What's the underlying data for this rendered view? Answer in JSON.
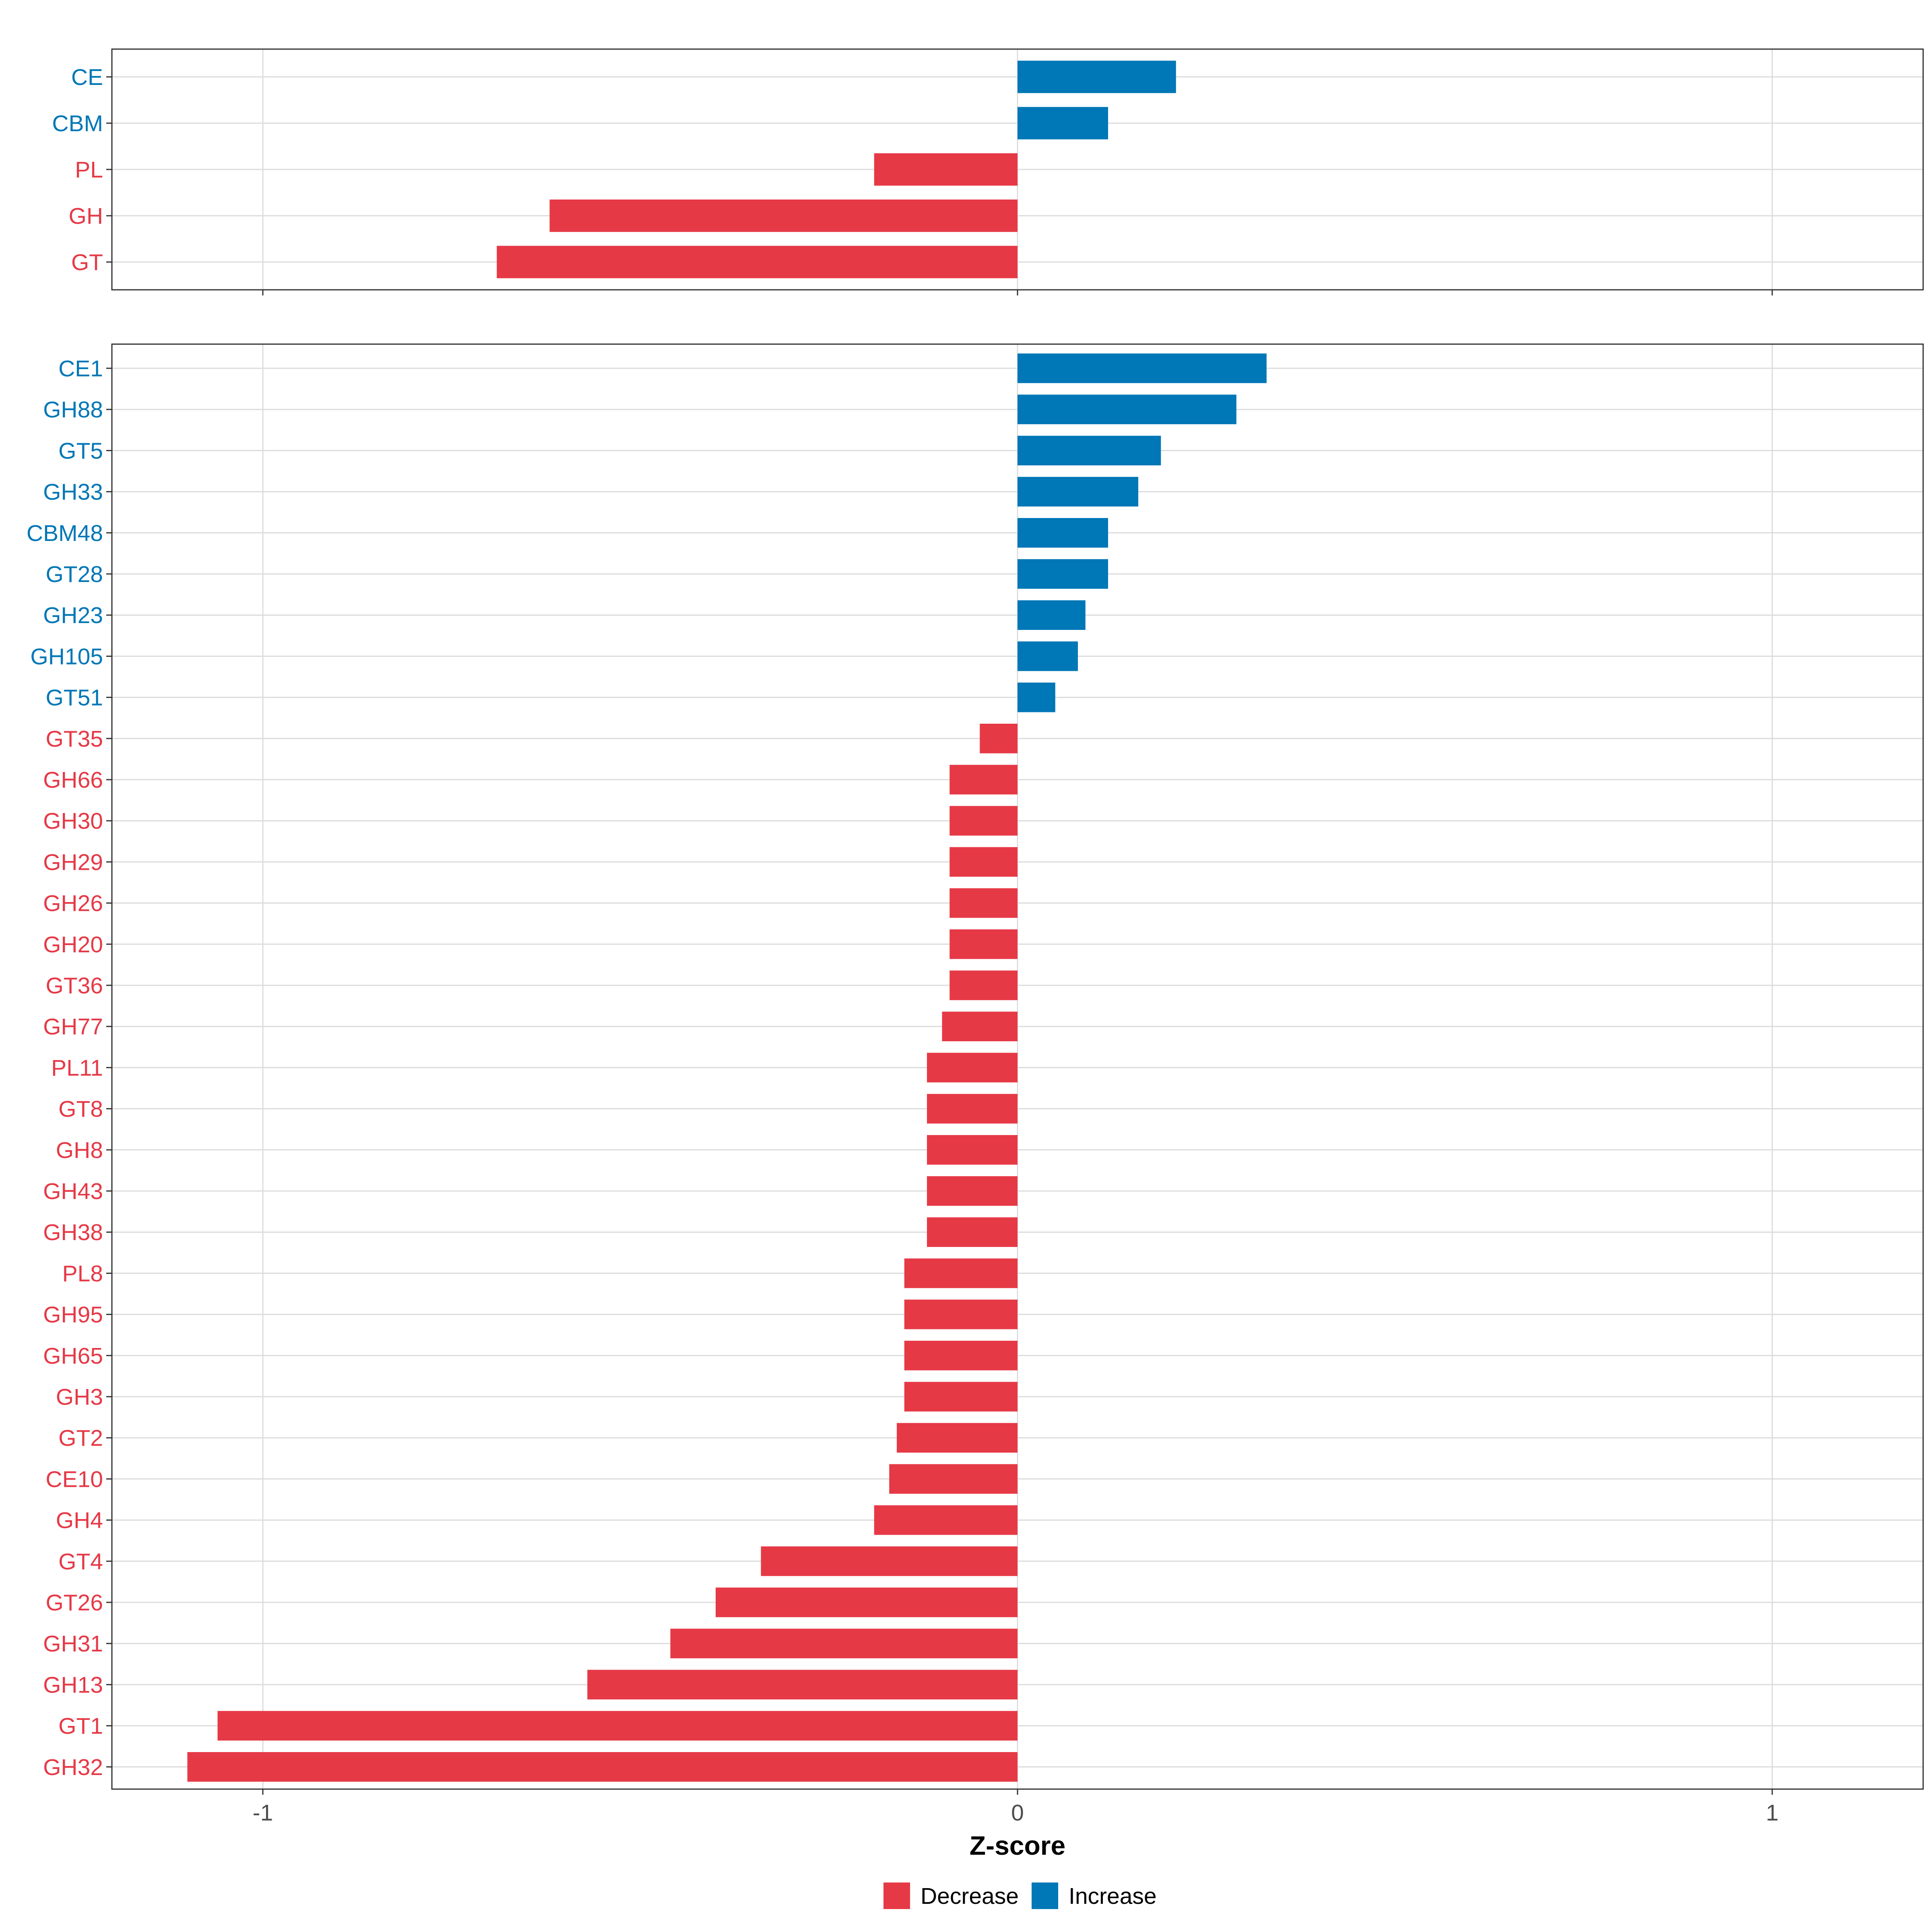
{
  "chart_data": [
    {
      "type": "bar",
      "orientation": "horizontal",
      "panel": "top",
      "categories": [
        "CE",
        "CBM",
        "PL",
        "GH",
        "GT"
      ],
      "values": [
        0.21,
        0.12,
        -0.19,
        -0.62,
        -0.69
      ],
      "direction": [
        "Increase",
        "Increase",
        "Decrease",
        "Decrease",
        "Decrease"
      ],
      "xlim": [
        -1.2,
        1.2
      ],
      "grid": true
    },
    {
      "type": "bar",
      "orientation": "horizontal",
      "panel": "bottom",
      "categories": [
        "CE1",
        "GH88",
        "GT5",
        "GH33",
        "CBM48",
        "GT28",
        "GH23",
        "GH105",
        "GT51",
        "GT35",
        "GH66",
        "GH30",
        "GH29",
        "GH26",
        "GH20",
        "GT36",
        "GH77",
        "PL11",
        "GT8",
        "GH8",
        "GH43",
        "GH38",
        "PL8",
        "GH95",
        "GH65",
        "GH3",
        "GT2",
        "CE10",
        "GH4",
        "GT4",
        "GT26",
        "GH31",
        "GH13",
        "GT1",
        "GH32"
      ],
      "values": [
        0.33,
        0.29,
        0.19,
        0.16,
        0.12,
        0.12,
        0.09,
        0.08,
        0.05,
        -0.05,
        -0.09,
        -0.09,
        -0.09,
        -0.09,
        -0.09,
        -0.09,
        -0.1,
        -0.12,
        -0.12,
        -0.12,
        -0.12,
        -0.12,
        -0.15,
        -0.15,
        -0.15,
        -0.15,
        -0.16,
        -0.17,
        -0.19,
        -0.34,
        -0.4,
        -0.46,
        -0.57,
        -1.06,
        -1.1
      ],
      "direction": [
        "Increase",
        "Increase",
        "Increase",
        "Increase",
        "Increase",
        "Increase",
        "Increase",
        "Increase",
        "Increase",
        "Decrease",
        "Decrease",
        "Decrease",
        "Decrease",
        "Decrease",
        "Decrease",
        "Decrease",
        "Decrease",
        "Decrease",
        "Decrease",
        "Decrease",
        "Decrease",
        "Decrease",
        "Decrease",
        "Decrease",
        "Decrease",
        "Decrease",
        "Decrease",
        "Decrease",
        "Decrease",
        "Decrease",
        "Decrease",
        "Decrease",
        "Decrease",
        "Decrease",
        "Decrease"
      ],
      "xlim": [
        -1.2,
        1.2
      ],
      "xticks": [
        -1,
        0,
        1
      ],
      "xtick_labels": [
        "-1",
        "0",
        "1"
      ],
      "xlabel": "Z-score",
      "grid": true
    }
  ],
  "legend": {
    "placement": "bottom-center",
    "items": [
      {
        "label": "Decrease",
        "color": "#e63946"
      },
      {
        "label": "Increase",
        "color": "#0077b6"
      }
    ]
  }
}
